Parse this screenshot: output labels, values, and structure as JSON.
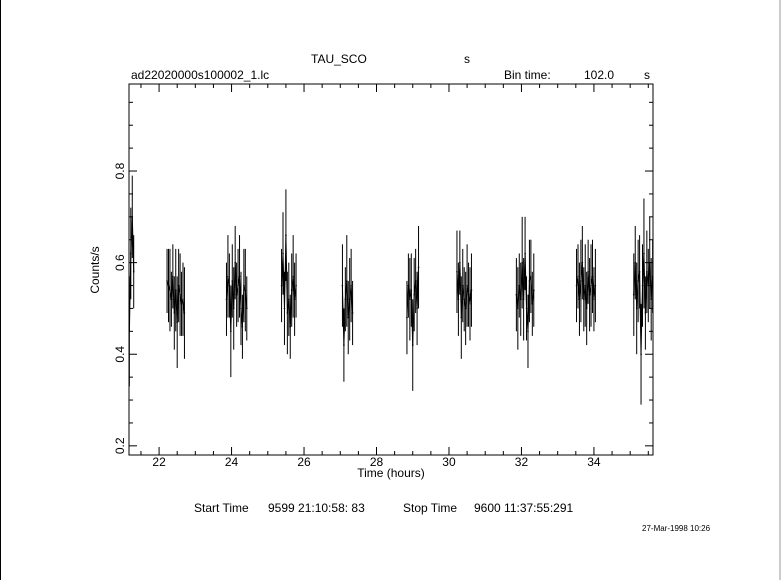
{
  "header": {
    "object": "TAU_SCO",
    "object_unit": "s",
    "filename": "ad22020000s100002_1.lc",
    "bin_label": "Bin time:",
    "bin_value": "102.0",
    "bin_unit": "s"
  },
  "footer": {
    "start_label": "Start Time",
    "start_value": "9599 21:10:58: 83",
    "stop_label": "Stop Time",
    "stop_value": "9600 11:37:55:291",
    "timestamp": "27-Mar-1998 10:26"
  },
  "chart_data": {
    "type": "scatter",
    "xlabel": "Time (hours)",
    "ylabel": "Counts/s",
    "xlim": [
      21.17,
      35.63
    ],
    "ylim": [
      0.18,
      0.99
    ],
    "x_ticks": [
      22,
      24,
      26,
      28,
      30,
      32,
      34
    ],
    "y_ticks": [
      0.2,
      0.4,
      0.6,
      0.8
    ],
    "x_tick_labels": [
      "22",
      "24",
      "26",
      "28",
      "30",
      "32",
      "34"
    ],
    "y_tick_labels": [
      "0.2",
      "0.4",
      "0.6",
      "0.8"
    ],
    "error_bars": true,
    "segments": [
      {
        "x": [
          21.18,
          21.22,
          21.26,
          21.3
        ],
        "y": [
          0.45,
          0.62,
          0.7,
          0.58
        ],
        "err": [
          0.12,
          0.1,
          0.09,
          0.08
        ]
      },
      {
        "x": [
          22.22,
          22.26,
          22.3,
          22.34,
          22.38,
          22.42,
          22.46,
          22.5,
          22.54,
          22.58,
          22.62,
          22.66,
          22.7
        ],
        "y": [
          0.56,
          0.55,
          0.54,
          0.52,
          0.57,
          0.49,
          0.54,
          0.47,
          0.55,
          0.53,
          0.51,
          0.52,
          0.49
        ],
        "err": [
          0.07,
          0.08,
          0.09,
          0.06,
          0.07,
          0.08,
          0.09,
          0.1,
          0.08,
          0.09,
          0.07,
          0.08,
          0.1
        ]
      },
      {
        "x": [
          23.86,
          23.9,
          23.94,
          23.98,
          24.02,
          24.06,
          24.1,
          24.14,
          24.18,
          24.22,
          24.26,
          24.3,
          24.34,
          24.38,
          24.42
        ],
        "y": [
          0.52,
          0.57,
          0.55,
          0.45,
          0.56,
          0.5,
          0.6,
          0.53,
          0.55,
          0.57,
          0.5,
          0.46,
          0.55,
          0.54,
          0.5
        ],
        "err": [
          0.08,
          0.09,
          0.07,
          0.1,
          0.08,
          0.09,
          0.08,
          0.07,
          0.08,
          0.09,
          0.08,
          0.07,
          0.08,
          0.09,
          0.07
        ]
      },
      {
        "x": [
          25.38,
          25.42,
          25.46,
          25.5,
          25.54,
          25.58,
          25.62,
          25.66,
          25.7,
          25.74,
          25.78
        ],
        "y": [
          0.55,
          0.62,
          0.5,
          0.66,
          0.49,
          0.52,
          0.46,
          0.54,
          0.57,
          0.52,
          0.55
        ],
        "err": [
          0.08,
          0.09,
          0.08,
          0.1,
          0.09,
          0.08,
          0.07,
          0.08,
          0.09,
          0.08,
          0.07
        ]
      },
      {
        "x": [
          27.06,
          27.1,
          27.14,
          27.18,
          27.22,
          27.26,
          27.3,
          27.34
        ],
        "y": [
          0.55,
          0.42,
          0.52,
          0.56,
          0.48,
          0.52,
          0.55,
          0.49
        ],
        "err": [
          0.09,
          0.08,
          0.07,
          0.1,
          0.08,
          0.09,
          0.08,
          0.07
        ]
      },
      {
        "x": [
          28.84,
          28.88,
          28.92,
          28.96,
          29.0,
          29.04,
          29.08,
          29.12,
          29.16
        ],
        "y": [
          0.48,
          0.55,
          0.52,
          0.54,
          0.42,
          0.53,
          0.56,
          0.5,
          0.59
        ],
        "err": [
          0.08,
          0.07,
          0.09,
          0.08,
          0.1,
          0.08,
          0.07,
          0.08,
          0.09
        ]
      },
      {
        "x": [
          30.22,
          30.26,
          30.3,
          30.34,
          30.38,
          30.42,
          30.46,
          30.5,
          30.54,
          30.58,
          30.62
        ],
        "y": [
          0.58,
          0.52,
          0.6,
          0.48,
          0.55,
          0.52,
          0.5,
          0.55,
          0.53,
          0.51,
          0.54
        ],
        "err": [
          0.09,
          0.08,
          0.07,
          0.09,
          0.08,
          0.07,
          0.08,
          0.09,
          0.07,
          0.08,
          0.08
        ]
      },
      {
        "x": [
          31.86,
          31.9,
          31.94,
          31.98,
          32.02,
          32.06,
          32.1,
          32.14,
          32.18,
          32.22,
          32.26,
          32.3,
          32.34
        ],
        "y": [
          0.53,
          0.5,
          0.55,
          0.52,
          0.6,
          0.52,
          0.62,
          0.5,
          0.45,
          0.56,
          0.57,
          0.51,
          0.54
        ],
        "err": [
          0.08,
          0.09,
          0.07,
          0.08,
          0.1,
          0.09,
          0.08,
          0.07,
          0.08,
          0.09,
          0.08,
          0.07,
          0.08
        ]
      },
      {
        "x": [
          33.52,
          33.56,
          33.6,
          33.64,
          33.68,
          33.72,
          33.76,
          33.8,
          33.84,
          33.88,
          33.92,
          33.96,
          34.0,
          34.04
        ],
        "y": [
          0.55,
          0.57,
          0.52,
          0.56,
          0.6,
          0.52,
          0.55,
          0.5,
          0.58,
          0.53,
          0.55,
          0.57,
          0.52,
          0.55
        ],
        "err": [
          0.08,
          0.07,
          0.08,
          0.09,
          0.08,
          0.07,
          0.09,
          0.08,
          0.07,
          0.08,
          0.09,
          0.08,
          0.07,
          0.08
        ]
      },
      {
        "x": [
          35.1,
          35.14,
          35.18,
          35.22,
          35.26,
          35.3,
          35.34,
          35.38,
          35.42,
          35.46,
          35.5,
          35.54,
          35.58,
          35.62
        ],
        "y": [
          0.53,
          0.6,
          0.5,
          0.56,
          0.58,
          0.4,
          0.55,
          0.62,
          0.49,
          0.58,
          0.55,
          0.6,
          0.52,
          0.57
        ],
        "err": [
          0.09,
          0.08,
          0.1,
          0.09,
          0.08,
          0.11,
          0.09,
          0.12,
          0.08,
          0.09,
          0.08,
          0.1,
          0.09,
          0.08
        ]
      }
    ]
  }
}
